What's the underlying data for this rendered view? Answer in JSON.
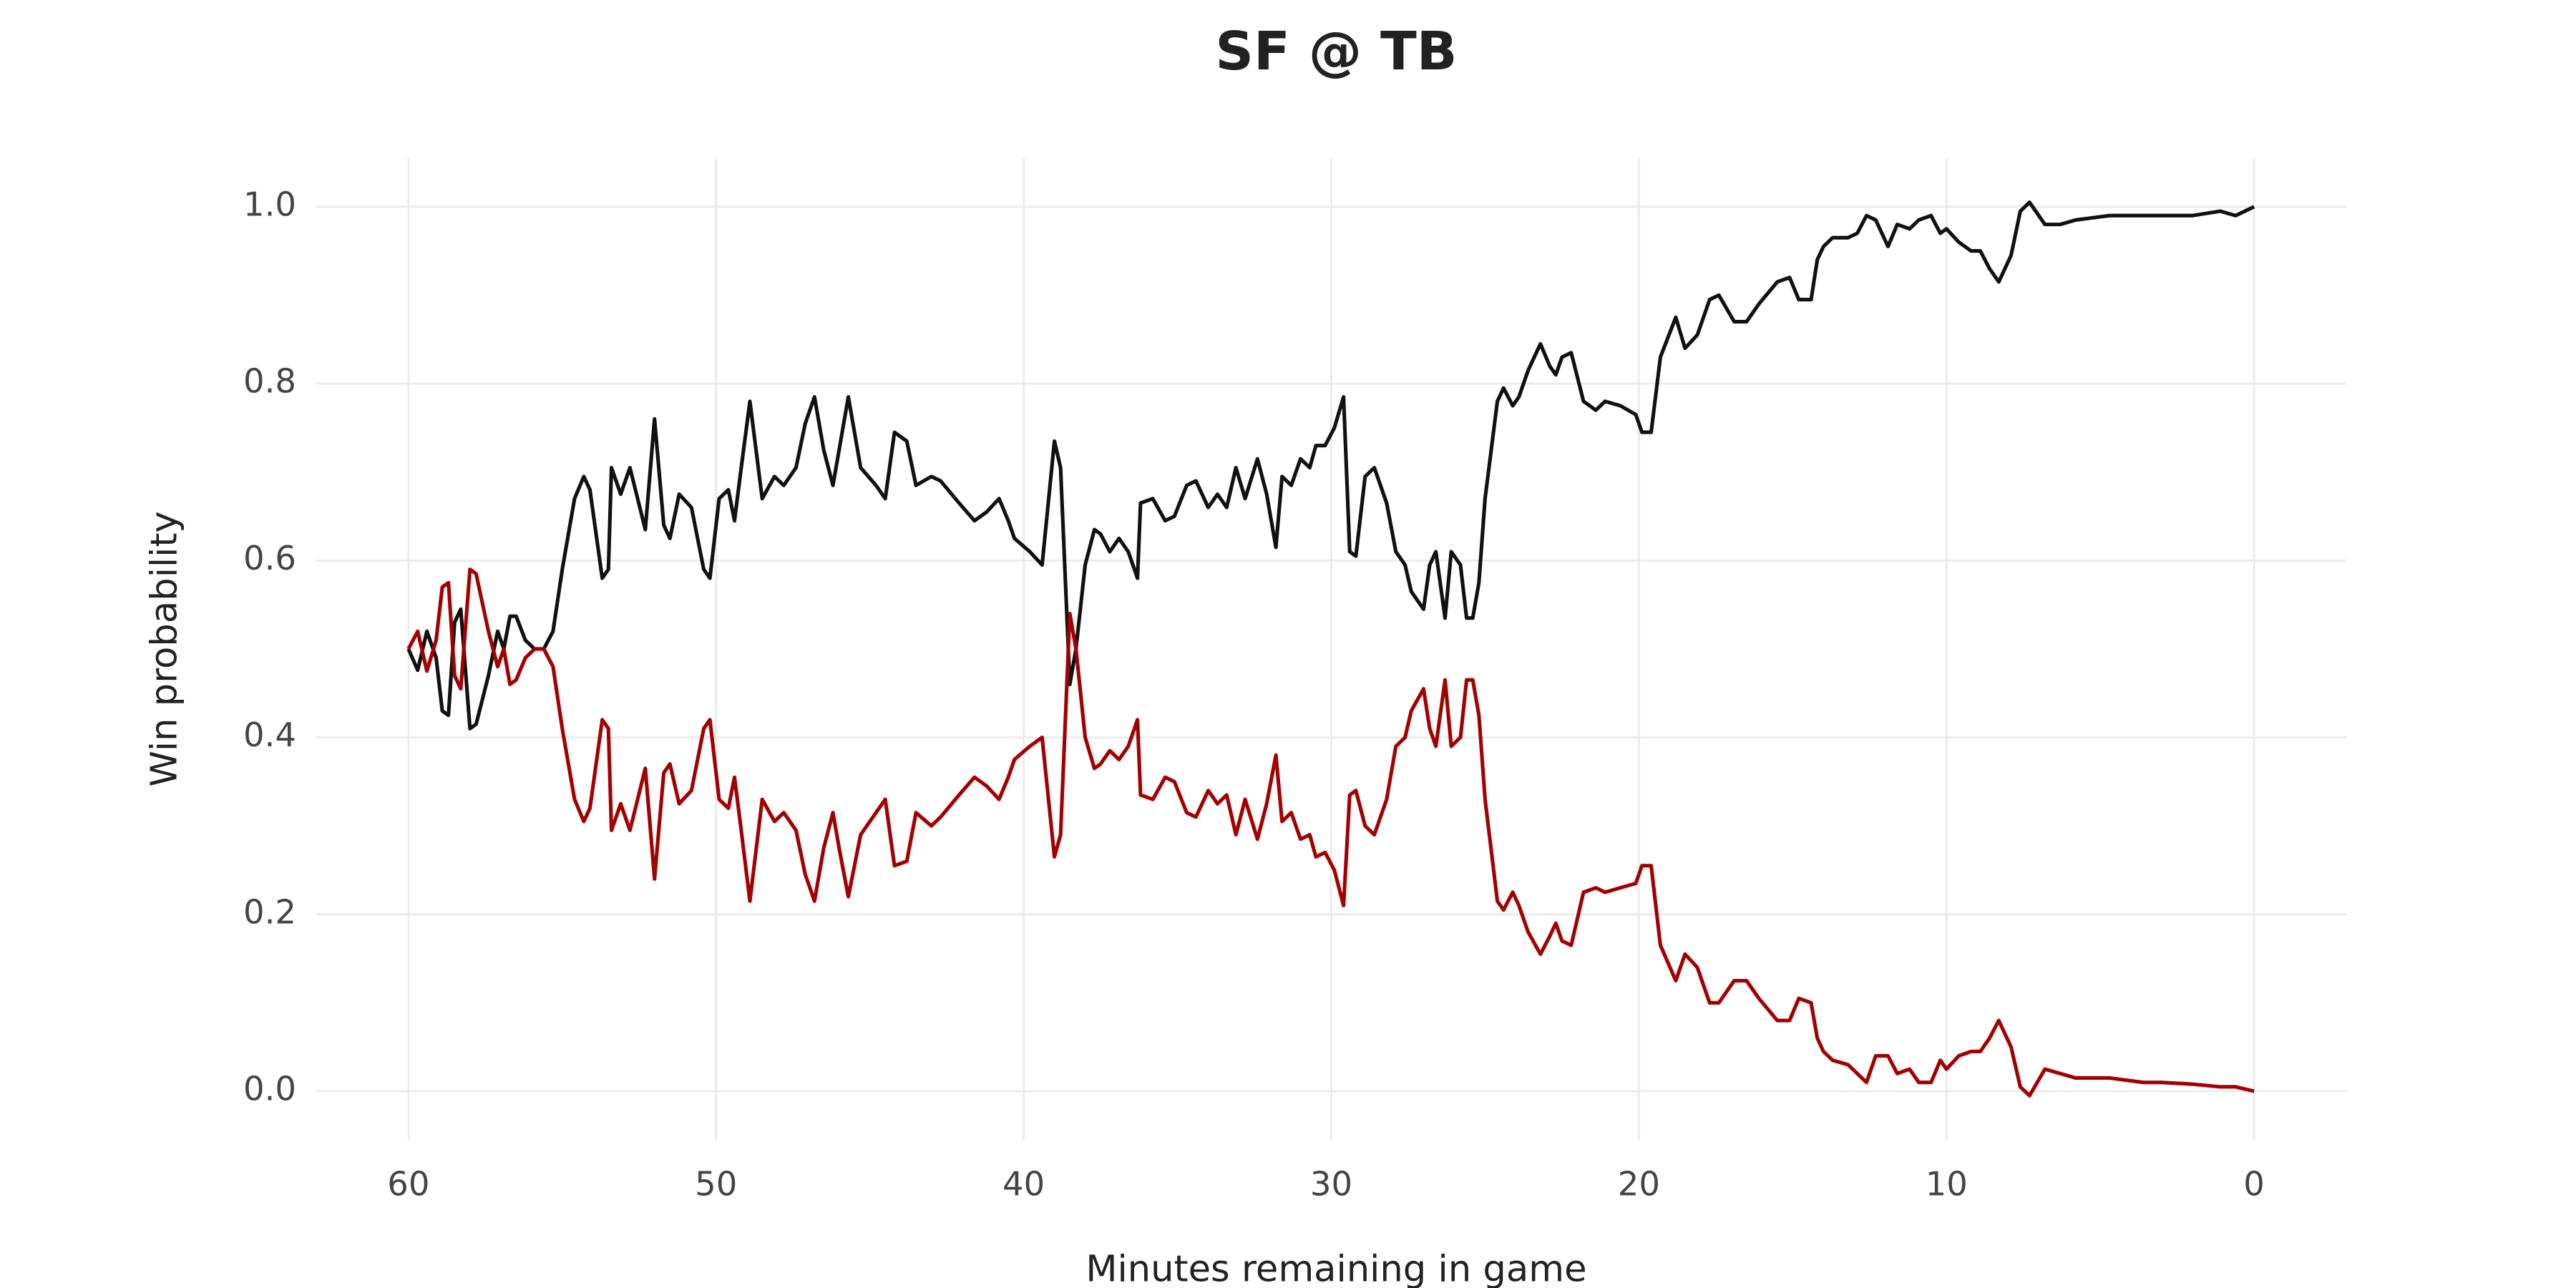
{
  "chart_data": {
    "type": "line",
    "title": "SF @ TB",
    "x_label": "Minutes remaining in game",
    "y_label": "Win probability",
    "xlim": [
      63,
      -3
    ],
    "ylim": [
      -0.055,
      1.055
    ],
    "xticks": [
      60,
      50,
      40,
      30,
      20,
      10,
      0
    ],
    "yticks": [
      {
        "value": 0,
        "label": "0.0"
      },
      0.2,
      0.4,
      0.6,
      0.8,
      {
        "value": 1,
        "label": "1.0"
      }
    ],
    "grid": true,
    "x": [
      60,
      59.7,
      59.4,
      59.1,
      58.9,
      58.7,
      58.5,
      58.3,
      58.0,
      57.8,
      57.4,
      57.1,
      56.9,
      56.7,
      56.5,
      56.2,
      55.9,
      55.6,
      55.3,
      55.0,
      54.6,
      54.3,
      54.1,
      53.7,
      53.5,
      53.4,
      53.1,
      52.8,
      52.3,
      52.0,
      51.7,
      51.5,
      51.2,
      50.8,
      50.4,
      50.2,
      49.9,
      49.6,
      49.4,
      49.2,
      48.9,
      48.5,
      48.1,
      47.8,
      47.4,
      47.1,
      46.8,
      46.5,
      46.2,
      46.0,
      45.7,
      45.3,
      44.8,
      44.5,
      44.2,
      43.8,
      43.5,
      43.0,
      42.7,
      42.1,
      41.6,
      41.2,
      40.8,
      40.5,
      40.3,
      39.8,
      39.4,
      39.0,
      38.8,
      38.5,
      38.3,
      38.0,
      37.7,
      37.5,
      37.2,
      36.9,
      36.6,
      36.3,
      36.2,
      35.8,
      35.4,
      35.1,
      34.7,
      34.4,
      34.0,
      33.7,
      33.4,
      33.1,
      32.8,
      32.4,
      32.1,
      31.8,
      31.6,
      31.3,
      31.0,
      30.7,
      30.5,
      30.2,
      29.9,
      29.6,
      29.4,
      29.2,
      28.9,
      28.6,
      28.2,
      27.9,
      27.6,
      27.4,
      27.0,
      26.8,
      26.6,
      26.3,
      26.1,
      25.8,
      25.6,
      25.4,
      25.2,
      25.0,
      24.6,
      24.4,
      24.1,
      23.9,
      23.6,
      23.2,
      22.9,
      22.7,
      22.5,
      22.2,
      21.8,
      21.4,
      21.1,
      20.6,
      20.1,
      19.9,
      19.6,
      19.3,
      18.8,
      18.5,
      18.1,
      17.7,
      17.4,
      16.9,
      16.5,
      16.1,
      15.5,
      15.1,
      14.8,
      14.4,
      14.2,
      14.0,
      13.7,
      13.2,
      12.9,
      12.6,
      12.3,
      11.9,
      11.6,
      11.2,
      10.9,
      10.5,
      10.2,
      10.0,
      9.6,
      9.2,
      8.9,
      8.6,
      8.3,
      7.9,
      7.6,
      7.3,
      6.8,
      6.3,
      5.8,
      4.7,
      3.6,
      3.0,
      2.0,
      1.1,
      0.6,
      0
    ],
    "series": [
      {
        "color": "#111111",
        "values": [
          0.5,
          0.476,
          0.52,
          0.49,
          0.43,
          0.425,
          0.53,
          0.545,
          0.41,
          0.415,
          0.47,
          0.52,
          0.5,
          0.537,
          0.537,
          0.51,
          0.5,
          0.5,
          0.52,
          0.59,
          0.67,
          0.695,
          0.68,
          0.58,
          0.59,
          0.705,
          0.675,
          0.705,
          0.635,
          0.76,
          0.64,
          0.625,
          0.675,
          0.66,
          0.59,
          0.58,
          0.67,
          0.68,
          0.645,
          0.7,
          0.78,
          0.67,
          0.695,
          0.685,
          0.705,
          0.755,
          0.785,
          0.725,
          0.685,
          0.725,
          0.785,
          0.705,
          0.685,
          0.67,
          0.745,
          0.735,
          0.685,
          0.695,
          0.69,
          0.665,
          0.645,
          0.655,
          0.67,
          0.645,
          0.625,
          0.61,
          0.595,
          0.735,
          0.705,
          0.46,
          0.5,
          0.595,
          0.635,
          0.63,
          0.61,
          0.625,
          0.61,
          0.58,
          0.665,
          0.67,
          0.645,
          0.65,
          0.685,
          0.69,
          0.66,
          0.675,
          0.66,
          0.705,
          0.67,
          0.715,
          0.675,
          0.615,
          0.695,
          0.685,
          0.715,
          0.705,
          0.73,
          0.73,
          0.75,
          0.785,
          0.61,
          0.605,
          0.695,
          0.705,
          0.665,
          0.61,
          0.595,
          0.565,
          0.545,
          0.595,
          0.61,
          0.535,
          0.61,
          0.595,
          0.535,
          0.535,
          0.575,
          0.67,
          0.78,
          0.795,
          0.775,
          0.785,
          0.815,
          0.845,
          0.82,
          0.81,
          0.83,
          0.835,
          0.78,
          0.77,
          0.78,
          0.775,
          0.765,
          0.745,
          0.745,
          0.83,
          0.875,
          0.84,
          0.855,
          0.895,
          0.9,
          0.87,
          0.87,
          0.89,
          0.915,
          0.92,
          0.895,
          0.895,
          0.94,
          0.955,
          0.965,
          0.965,
          0.97,
          0.99,
          0.985,
          0.955,
          0.98,
          0.975,
          0.985,
          0.99,
          0.97,
          0.975,
          0.96,
          0.95,
          0.95,
          0.93,
          0.915,
          0.945,
          0.995,
          1.005,
          0.98,
          0.98,
          0.985,
          0.99,
          0.99,
          0.99,
          0.99,
          0.995,
          0.99,
          1.0
        ]
      },
      {
        "color": "#a50000",
        "values": [
          0.5,
          0.52,
          0.475,
          0.51,
          0.57,
          0.575,
          0.47,
          0.455,
          0.59,
          0.585,
          0.52,
          0.48,
          0.5,
          0.46,
          0.465,
          0.49,
          0.5,
          0.5,
          0.48,
          0.41,
          0.33,
          0.305,
          0.32,
          0.42,
          0.41,
          0.295,
          0.325,
          0.295,
          0.365,
          0.24,
          0.36,
          0.37,
          0.325,
          0.34,
          0.41,
          0.42,
          0.33,
          0.32,
          0.355,
          0.3,
          0.215,
          0.33,
          0.305,
          0.315,
          0.295,
          0.245,
          0.215,
          0.275,
          0.315,
          0.275,
          0.22,
          0.29,
          0.315,
          0.33,
          0.255,
          0.26,
          0.315,
          0.3,
          0.31,
          0.335,
          0.355,
          0.345,
          0.33,
          0.355,
          0.375,
          0.39,
          0.4,
          0.265,
          0.29,
          0.54,
          0.5,
          0.4,
          0.365,
          0.37,
          0.385,
          0.375,
          0.39,
          0.42,
          0.335,
          0.33,
          0.355,
          0.35,
          0.315,
          0.31,
          0.34,
          0.325,
          0.335,
          0.29,
          0.33,
          0.285,
          0.325,
          0.38,
          0.305,
          0.315,
          0.285,
          0.29,
          0.265,
          0.27,
          0.25,
          0.21,
          0.335,
          0.34,
          0.3,
          0.29,
          0.33,
          0.39,
          0.4,
          0.43,
          0.455,
          0.41,
          0.39,
          0.465,
          0.39,
          0.4,
          0.465,
          0.465,
          0.425,
          0.33,
          0.215,
          0.205,
          0.225,
          0.21,
          0.18,
          0.155,
          0.175,
          0.19,
          0.17,
          0.165,
          0.225,
          0.23,
          0.225,
          0.23,
          0.235,
          0.255,
          0.255,
          0.165,
          0.125,
          0.155,
          0.14,
          0.1,
          0.1,
          0.125,
          0.125,
          0.105,
          0.08,
          0.08,
          0.105,
          0.1,
          0.06,
          0.045,
          0.035,
          0.03,
          0.02,
          0.01,
          0.04,
          0.04,
          0.02,
          0.025,
          0.01,
          0.01,
          0.035,
          0.025,
          0.04,
          0.045,
          0.045,
          0.06,
          0.08,
          0.05,
          0.005,
          -0.005,
          0.025,
          0.02,
          0.015,
          0.015,
          0.01,
          0.01,
          0.008,
          0.005,
          0.005,
          0
        ]
      }
    ]
  }
}
